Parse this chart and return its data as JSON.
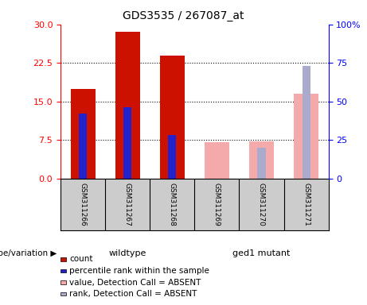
{
  "title": "GDS3535 / 267087_at",
  "samples": [
    "GSM311266",
    "GSM311267",
    "GSM311268",
    "GSM311269",
    "GSM311270",
    "GSM311271"
  ],
  "count_values": [
    17.5,
    28.5,
    24.0,
    null,
    null,
    null
  ],
  "percentile_rank_pct": [
    42,
    46,
    28,
    null,
    null,
    null
  ],
  "absent_value": [
    null,
    null,
    null,
    7.0,
    7.2,
    16.5
  ],
  "absent_rank_pct": [
    null,
    null,
    null,
    null,
    20,
    73
  ],
  "left_ylim": [
    0,
    30
  ],
  "right_ylim": [
    0,
    100
  ],
  "left_yticks": [
    0,
    7.5,
    15,
    22.5,
    30
  ],
  "right_yticks": [
    0,
    25,
    50,
    75,
    100
  ],
  "right_yticklabels": [
    "0",
    "25",
    "50",
    "75",
    "100%"
  ],
  "wildtype_label": "wildtype",
  "mutant_label": "ged1 mutant",
  "color_count": "#cc1100",
  "color_rank": "#2222cc",
  "color_absent_value": "#f4aaaa",
  "color_absent_rank": "#aaaacc",
  "color_wildtype_bg": "#bbffbb",
  "color_mutant_bg": "#44ee44",
  "color_sample_bg": "#cccccc",
  "bar_width": 0.55,
  "rank_bar_width": 0.18,
  "legend_items": [
    {
      "color": "#cc1100",
      "label": "count"
    },
    {
      "color": "#2222cc",
      "label": "percentile rank within the sample"
    },
    {
      "color": "#f4aaaa",
      "label": "value, Detection Call = ABSENT"
    },
    {
      "color": "#aaaacc",
      "label": "rank, Detection Call = ABSENT"
    }
  ]
}
